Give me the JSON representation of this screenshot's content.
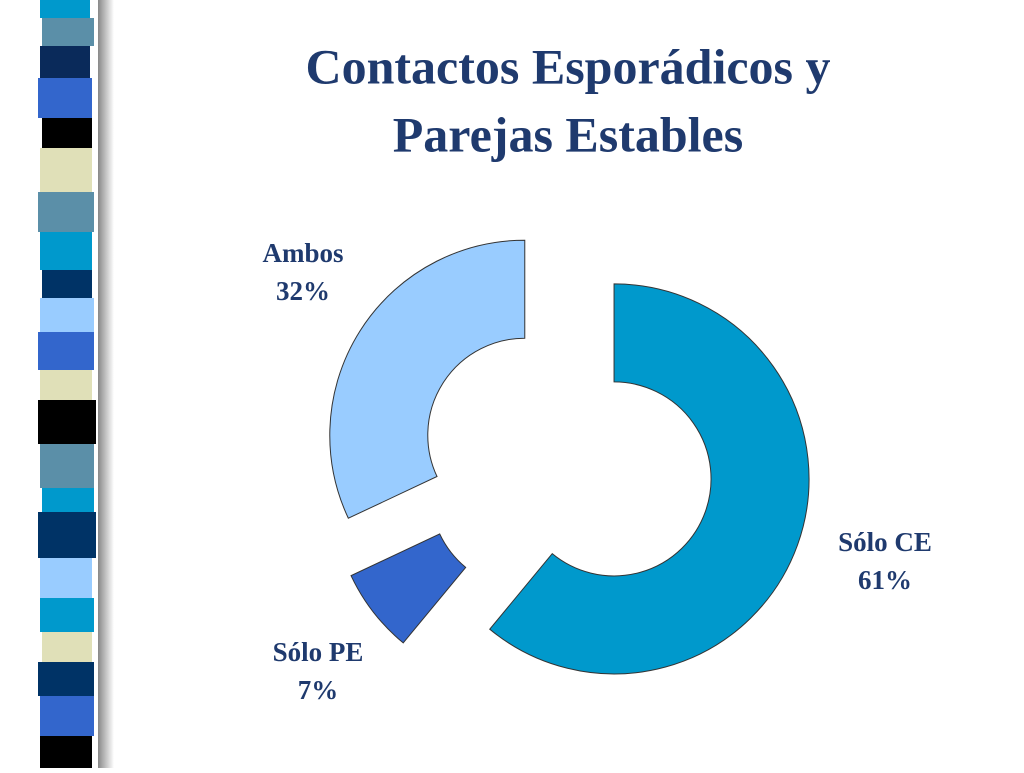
{
  "chart_data": {
    "type": "donut",
    "title": [
      "Contactos Esporádicos y",
      "Parejas Estables"
    ],
    "categories": [
      "Sólo CE",
      "Sólo PE",
      "Ambos"
    ],
    "values": [
      61,
      7,
      32
    ],
    "value_labels": [
      "61%",
      "7%",
      "32%"
    ],
    "colors": [
      "#0099cc",
      "#3366cc",
      "#99ccff"
    ]
  }
}
